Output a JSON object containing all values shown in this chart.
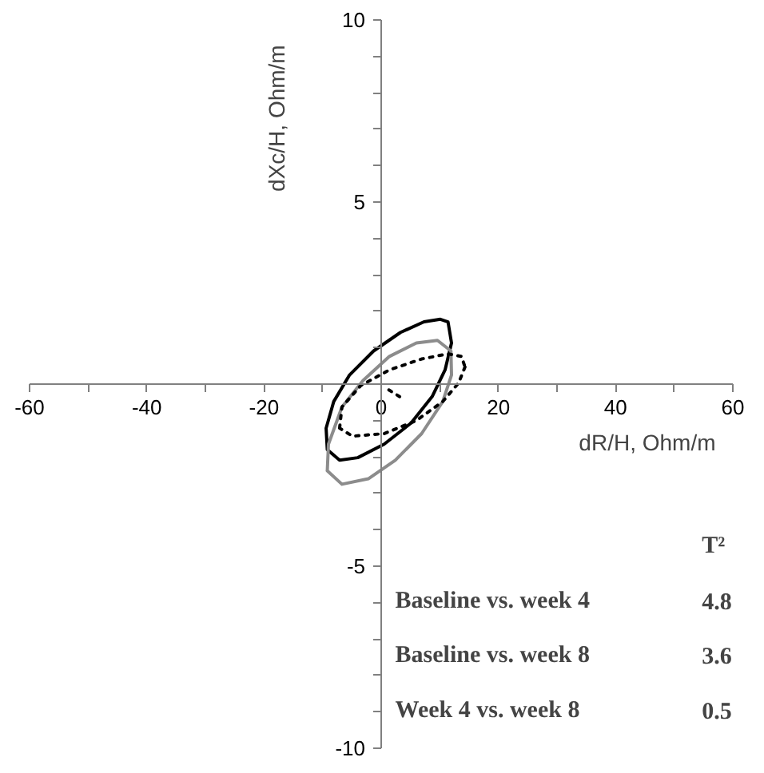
{
  "chart_data": {
    "type": "line",
    "xlabel": "dR/H, Ohm/m",
    "ylabel": "dXc/H, Ohm/m",
    "xlim": [
      -60,
      60
    ],
    "ylim": [
      -10,
      10
    ],
    "xticks": [
      -60,
      {
        "value": -50,
        "label": null
      },
      -40,
      {
        "value": -30,
        "label": null
      },
      -20,
      {
        "value": -10,
        "label": null
      },
      {
        "value": 0,
        "label": "0"
      },
      {
        "value": 10,
        "label": null
      },
      20,
      {
        "value": 30,
        "label": null
      },
      40,
      {
        "value": 50,
        "label": null
      },
      60
    ],
    "yticks": [
      -10,
      {
        "value": -9,
        "label": null
      },
      {
        "value": -8,
        "label": null
      },
      {
        "value": -7,
        "label": null
      },
      {
        "value": -6,
        "label": null
      },
      -5,
      {
        "value": -4,
        "label": null
      },
      {
        "value": -3,
        "label": null
      },
      {
        "value": -2,
        "label": null
      },
      {
        "value": -1,
        "label": null
      },
      {
        "value": 0,
        "label": null
      },
      {
        "value": 1,
        "label": null
      },
      {
        "value": 2,
        "label": null
      },
      {
        "value": 3,
        "label": null
      },
      {
        "value": 4,
        "label": null
      },
      5,
      {
        "value": 6,
        "label": null
      },
      {
        "value": 7,
        "label": null
      },
      {
        "value": 8,
        "label": null
      },
      {
        "value": 9,
        "label": null
      },
      10
    ],
    "series": [
      {
        "color": "#000000",
        "line_style": "solid",
        "x": [
          -9.4,
          -8.1,
          -5.4,
          -1.3,
          3.3,
          7.3,
          10.1,
          11.4,
          12.0,
          null,
          12.0,
          10.9,
          8.7,
          5.1,
          0.5,
          -4.0,
          -7.1,
          -9.2,
          -9.4
        ],
        "values": [
          -1.21,
          -0.48,
          0.25,
          0.91,
          1.42,
          1.71,
          1.78,
          1.71,
          1.13,
          null,
          1.13,
          0.39,
          -0.34,
          -1.07,
          -1.65,
          -2.02,
          -2.09,
          -1.8,
          -1.21
        ]
      },
      {
        "color": "#8c8c8c",
        "line_style": "solid",
        "x": [
          -9.2,
          -9.0,
          -6.7,
          -3.1,
          1.4,
          6.0,
          9.6,
          11.9,
          12.0,
          null,
          12.0,
          10.5,
          6.9,
          2.4,
          -2.2,
          -6.7,
          -9.2
        ],
        "values": [
          -2.38,
          -1.65,
          -0.63,
          0.1,
          0.76,
          1.13,
          1.2,
          0.91,
          0.25,
          null,
          0.25,
          -0.48,
          -1.36,
          -2.09,
          -2.6,
          -2.75,
          -2.38
        ]
      },
      {
        "color": "#000000",
        "line_style": "dotted",
        "x": [
          -7.1,
          -6.7,
          -3.5,
          1.4,
          6.9,
          11.4,
          13.7,
          14.3,
          null,
          14.3,
          13.2,
          10.5,
          6.0,
          0.5,
          -4.9,
          -7.1
        ],
        "values": [
          -1.21,
          -0.63,
          -0.04,
          0.39,
          0.69,
          0.83,
          0.76,
          0.47,
          null,
          0.47,
          0.03,
          -0.48,
          -1.0,
          -1.36,
          -1.43,
          -1.21
        ]
      },
      {
        "color": "#000000",
        "line_style": "dotted",
        "x": [
          1.3,
          3.4
        ],
        "values": [
          -0.16,
          -0.37
        ]
      }
    ],
    "annotations": [
      "T²",
      "Baseline vs. week 4",
      "4.8",
      "Baseline vs. week 8",
      "3.6",
      "Week 4 vs. week 8",
      "0.5"
    ]
  }
}
